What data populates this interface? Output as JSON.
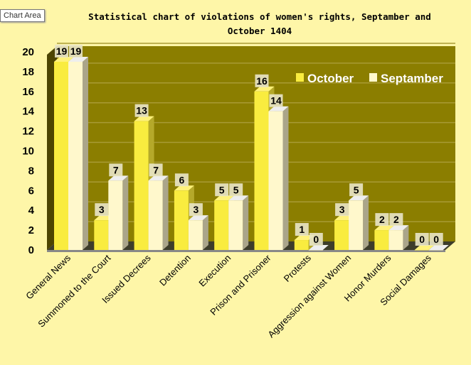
{
  "tooltip": "Chart Area",
  "chart_data": {
    "type": "bar",
    "title": "Statistical chart of violations of women's rights, Septamber  and October  1404",
    "categories": [
      "General News",
      "Summoned to the Court",
      "Issued Decrees",
      "Detention",
      "Execution",
      "Prison and Prisoner",
      "Protests",
      "Aggression against Women",
      "Honor Murders",
      "Social Damages"
    ],
    "series": [
      {
        "name": "October",
        "color": "#f9ec3f",
        "values": [
          19,
          3,
          13,
          6,
          5,
          16,
          1,
          3,
          2,
          0
        ]
      },
      {
        "name": "Septamber",
        "color": "#fff8cc",
        "values": [
          19,
          7,
          7,
          3,
          5,
          14,
          0,
          5,
          2,
          0
        ]
      }
    ],
    "ylim": [
      0,
      20
    ],
    "yticks": [
      "0",
      "2",
      "4",
      "6",
      "8",
      "10",
      "12",
      "14",
      "16",
      "18",
      "20"
    ],
    "xlabel": "",
    "ylabel": "",
    "grid": true,
    "legend": "top-right",
    "wall_color": "#8b7e00"
  }
}
